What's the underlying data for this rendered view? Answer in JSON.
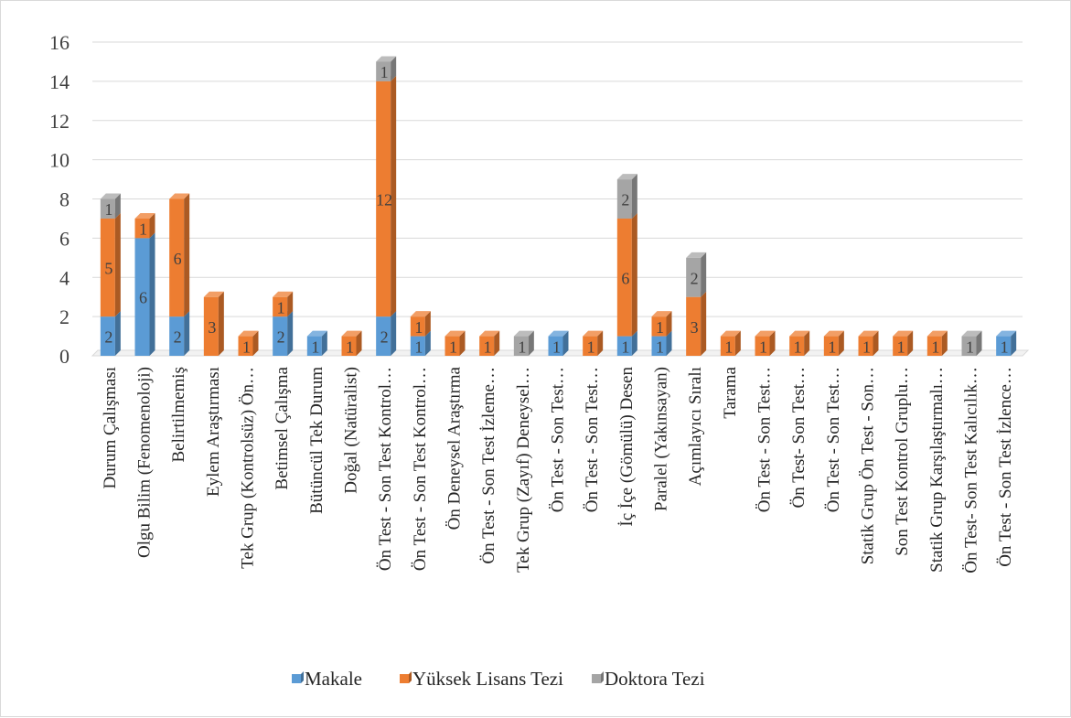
{
  "chart_data": {
    "type": "bar",
    "stacked": true,
    "style": "3d-stacked-column",
    "title": "",
    "xlabel": "",
    "ylabel": "",
    "ylim": [
      0,
      16
    ],
    "yticks": [
      0,
      2,
      4,
      6,
      8,
      10,
      12,
      14,
      16
    ],
    "grid": true,
    "legend_position": "bottom",
    "categories": [
      "Durum Çalışması",
      "Olgu Bilim (Fenomenoloji)",
      "Belirtilmemiş",
      "Eylem Araştırması",
      "Tek Grup (Kontrolsüz) Ön…",
      "Betimsel Çalışma",
      "Bütüncül Tek Durum",
      "Doğal (Natüralist)",
      "Ön Test - Son Test Kontrol…",
      "Ön Test - Son Test Kontrol…",
      "Ön Deneysel Araştırma",
      "Ön Test - Son Test İzleme…",
      "Tek Grup (Zayıf) Deneysel…",
      "Ön Test - Son Test…",
      "Ön Test - Son Test…",
      "İç İçe (Gömülü) Desen",
      "Paralel (Yakınsayan)",
      "Açımlayıcı Sıralı",
      "Tarama",
      "Ön Test - Son Test…",
      "Ön Test- Son Test…",
      "Ön Test - Son Test…",
      "Statik Grup Ön Test - Son…",
      "Son Test Kontrol Gruplu…",
      "Statik Grup Karşılaştırmalı…",
      "Ön Test- Son Test Kalıcılık…",
      "Ön Test - Son Test İzlence…"
    ],
    "series": [
      {
        "name": "Makale",
        "color": "#5b9bd5",
        "values": [
          2,
          6,
          2,
          0,
          0,
          2,
          1,
          0,
          2,
          1,
          0,
          0,
          0,
          1,
          0,
          1,
          1,
          0,
          0,
          0,
          0,
          0,
          0,
          0,
          0,
          0,
          1
        ]
      },
      {
        "name": "Yüksek Lisans Tezi",
        "color": "#ed7d31",
        "values": [
          5,
          1,
          6,
          3,
          1,
          1,
          0,
          1,
          12,
          1,
          1,
          1,
          0,
          0,
          1,
          6,
          1,
          3,
          1,
          1,
          1,
          1,
          1,
          1,
          1,
          0,
          0
        ]
      },
      {
        "name": "Doktora Tezi",
        "color": "#a5a5a5",
        "values": [
          1,
          0,
          0,
          0,
          0,
          0,
          0,
          0,
          1,
          0,
          0,
          0,
          1,
          0,
          0,
          2,
          0,
          2,
          0,
          0,
          0,
          0,
          0,
          0,
          0,
          1,
          0
        ]
      }
    ]
  }
}
